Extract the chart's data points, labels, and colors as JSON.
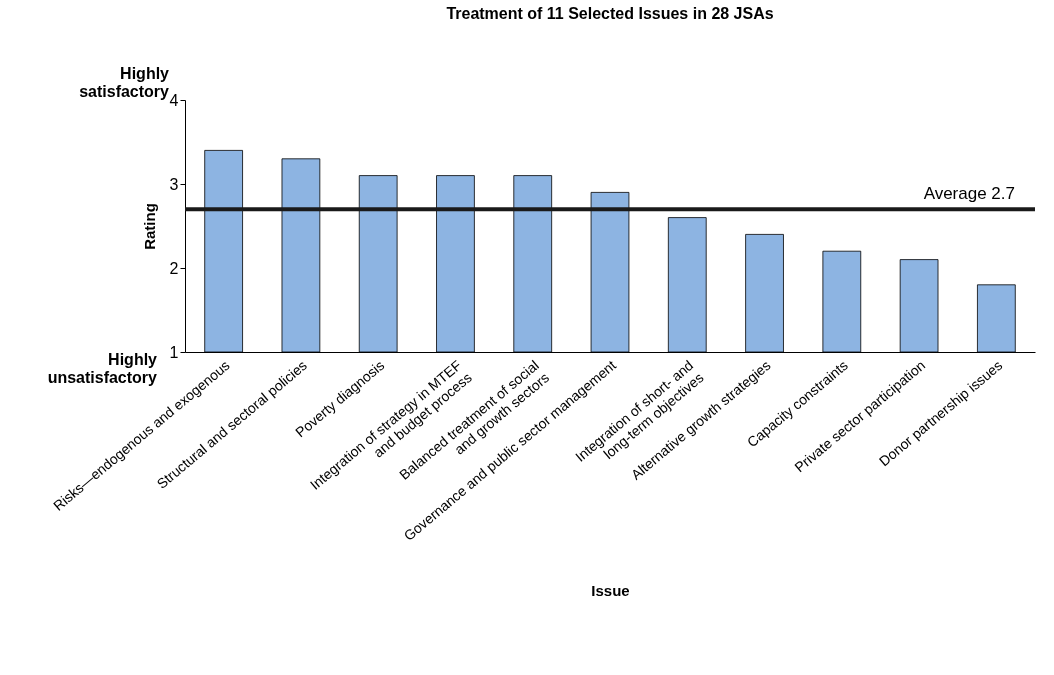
{
  "chart_data": {
    "type": "bar",
    "title": "Treatment of 11 Selected Issues in 28 JSAs",
    "xlabel": "Issue",
    "ylabel": "Rating",
    "categories": [
      "Risks—endogenous and exogenous",
      "Structural and sectoral policies",
      "Poverty diagnosis",
      "Integration of strategy in MTEF\nand budget process",
      "Balanced treatment of social\nand growth sectors",
      "Governance and public sector management",
      "Integration of short- and\nlong-term objectives",
      "Alternative growth strategies",
      "Capacity constraints",
      "Private sector participation",
      "Donor partnership issues"
    ],
    "values": [
      3.4,
      3.3,
      3.1,
      3.1,
      3.1,
      2.9,
      2.6,
      2.4,
      2.2,
      2.1,
      1.8
    ],
    "color": "#8db4e2",
    "ylim": [
      1,
      4
    ],
    "yticks": [
      1,
      2,
      3,
      4
    ],
    "grid": false,
    "ref_lines": [
      {
        "axis": "y",
        "value": 2.7,
        "label": "Average 2.7",
        "color": "#1a1a1a"
      }
    ],
    "annotations": [
      "Highly\nsatisfactory",
      "Highly\nunsatisfactory"
    ]
  }
}
